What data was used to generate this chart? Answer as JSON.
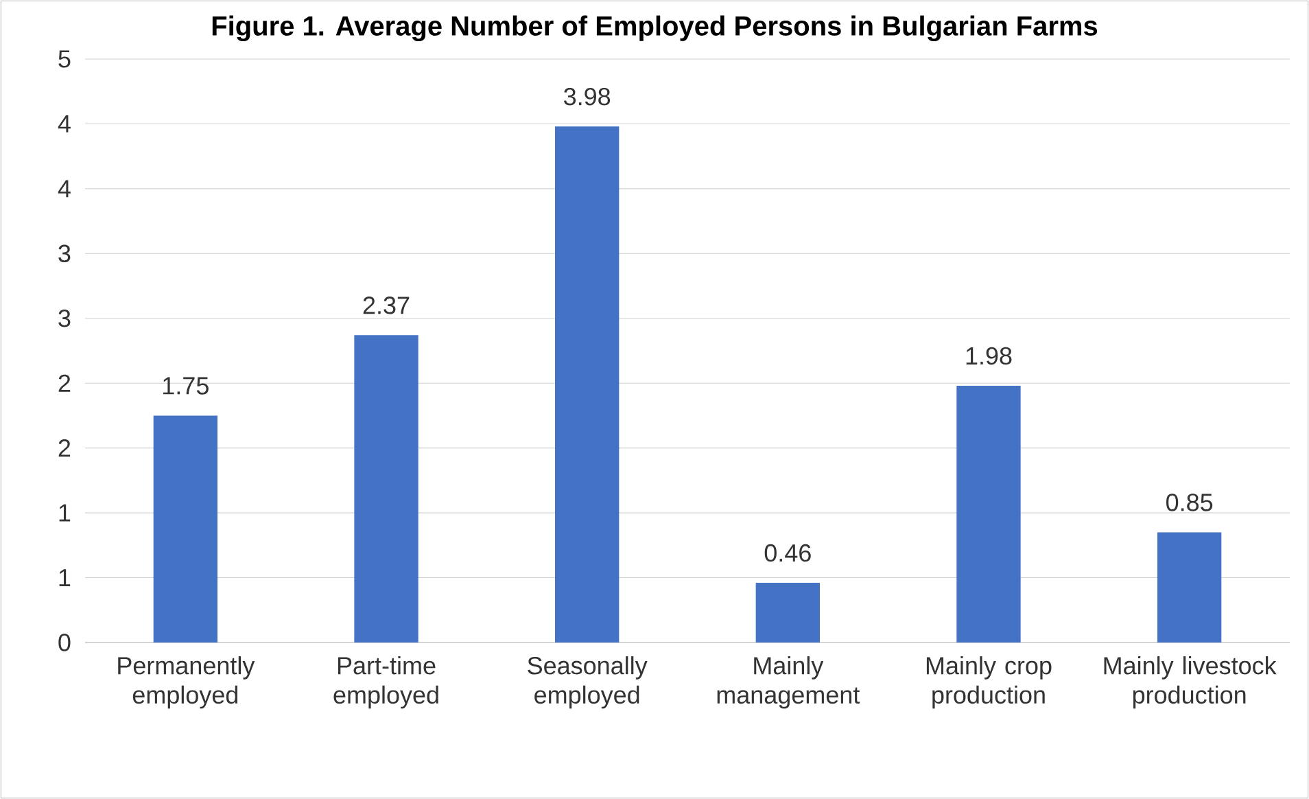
{
  "chart_data": {
    "type": "bar",
    "title": "Figure 1. Average Number of Employed Persons in Bulgarian Farms",
    "categories": [
      "Permanently employed",
      "Part-time employed",
      "Seasonally employed",
      "Mainly management",
      "Mainly crop production",
      "Mainly livestock production"
    ],
    "values": [
      1.75,
      2.37,
      3.98,
      0.46,
      1.98,
      0.85
    ],
    "color": "#4472c4",
    "ylim": [
      0,
      4.5
    ],
    "yticks": [
      0,
      {
        "value": 0.5,
        "label": "1"
      },
      1,
      {
        "value": 1.5,
        "label": "2"
      },
      2,
      {
        "value": 2.5,
        "label": "3"
      },
      3,
      {
        "value": 3.5,
        "label": "4"
      },
      4,
      {
        "value": 4.5,
        "label": "5"
      }
    ],
    "grid": "y",
    "data_labels": true
  }
}
